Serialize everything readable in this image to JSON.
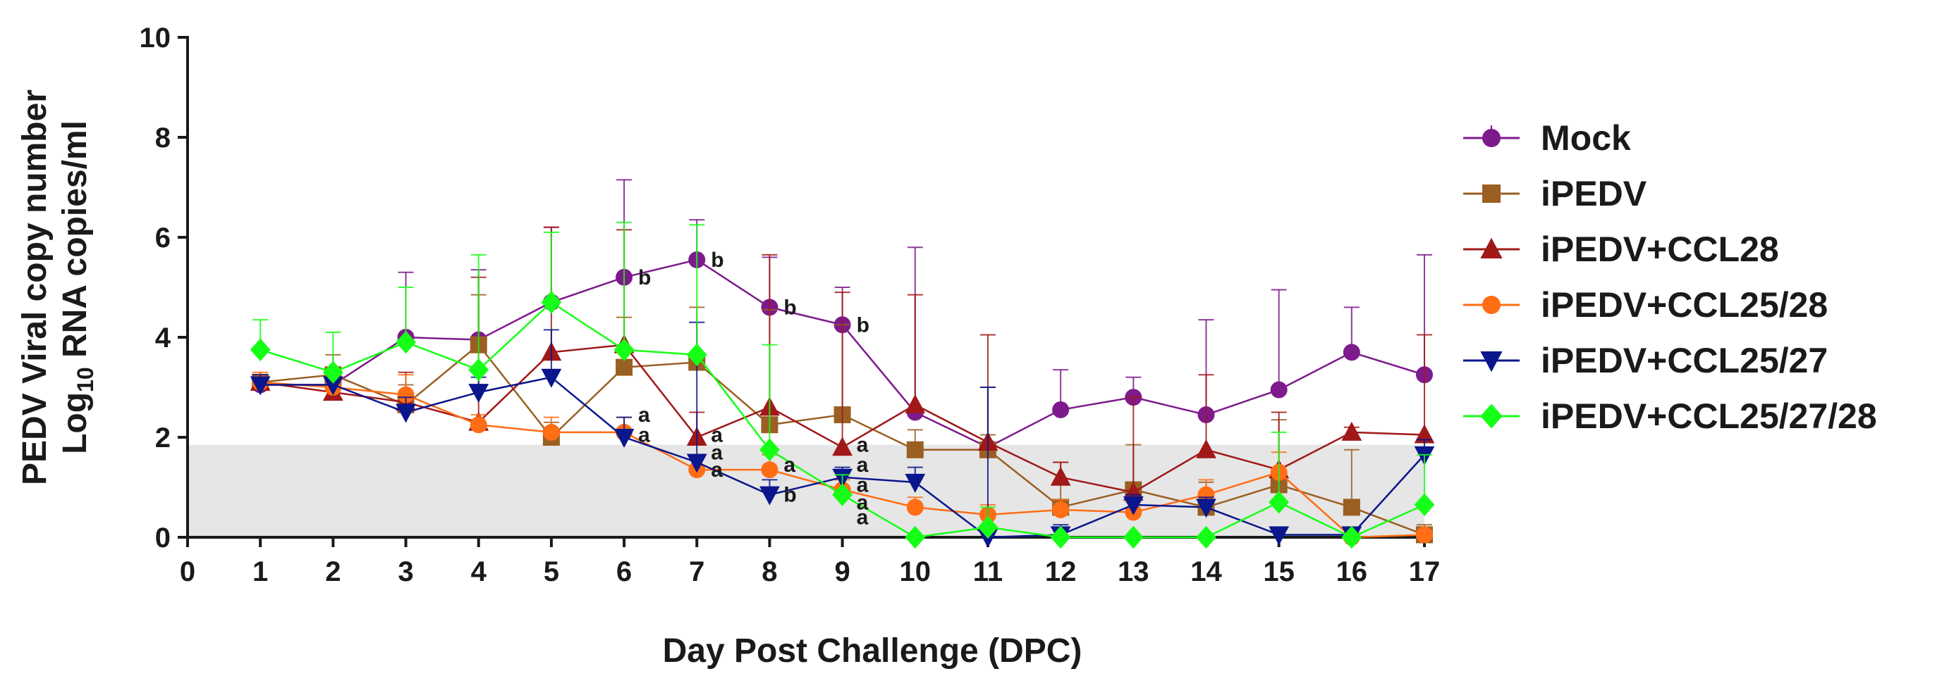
{
  "chart_data": {
    "type": "line",
    "title": "",
    "xlabel": "Day Post Challenge (DPC)",
    "ylabel_line1": "PEDV Viral copy number",
    "ylabel_line2_prefix": "Log",
    "ylabel_line2_subscript": "10",
    "ylabel_line2_suffix": " RNA copies/ml",
    "xlim": [
      0,
      17
    ],
    "ylim": [
      0,
      10
    ],
    "x_ticks": [
      "0",
      "1",
      "2",
      "3",
      "4",
      "5",
      "6",
      "7",
      "8",
      "9",
      "10",
      "11",
      "12",
      "13",
      "14",
      "15",
      "16",
      "17"
    ],
    "y_ticks": [
      "0",
      "2",
      "4",
      "6",
      "8",
      "10"
    ],
    "detection_limit": 1.85,
    "x": [
      1,
      2,
      3,
      4,
      5,
      6,
      7,
      8,
      9,
      10,
      11,
      12,
      13,
      14,
      15,
      16,
      17
    ],
    "legend_position": "right",
    "series": [
      {
        "name": "Mock",
        "color": "#7d1a8c",
        "marker": "circle",
        "values": [
          3.05,
          3.05,
          4.0,
          3.95,
          4.7,
          5.2,
          5.55,
          4.6,
          4.25,
          2.5,
          1.8,
          2.55,
          2.8,
          2.45,
          2.95,
          3.7,
          3.25
        ],
        "errors": [
          0.1,
          0.3,
          1.3,
          1.4,
          1.5,
          1.95,
          0.8,
          1.0,
          0.75,
          3.3,
          1.2,
          0.8,
          0.4,
          1.9,
          2.0,
          0.9,
          2.4
        ]
      },
      {
        "name": "iPEDV",
        "color": "#9a5f22",
        "marker": "square",
        "values": [
          3.1,
          3.25,
          2.65,
          3.85,
          2.0,
          3.4,
          3.5,
          2.25,
          2.45,
          1.75,
          1.75,
          0.6,
          0.95,
          0.6,
          1.05,
          0.6,
          0.05
        ],
        "errors": [
          0.15,
          0.4,
          0.4,
          1.0,
          0.3,
          1.0,
          1.1,
          2.3,
          1.8,
          0.4,
          0.3,
          0.9,
          0.9,
          0.5,
          1.3,
          1.15,
          0.2
        ]
      },
      {
        "name": "iPEDV+CCL28",
        "color": "#a01818",
        "marker": "triangle-up",
        "values": [
          3.1,
          2.9,
          2.7,
          2.3,
          3.7,
          3.85,
          2.0,
          2.6,
          1.8,
          2.65,
          1.9,
          1.2,
          0.9,
          1.75,
          1.35,
          2.1,
          2.05
        ],
        "errors": [
          0.1,
          0.3,
          0.6,
          2.9,
          2.5,
          2.3,
          0.5,
          3.05,
          3.1,
          2.2,
          2.15,
          0.3,
          1.9,
          1.5,
          1.15,
          0.1,
          2.0
        ]
      },
      {
        "name": "iPEDV+CCL25/28",
        "color": "#ff6d14",
        "marker": "circle",
        "values": [
          3.1,
          3.0,
          2.85,
          2.25,
          2.1,
          2.1,
          1.35,
          1.35,
          0.95,
          0.6,
          0.45,
          0.55,
          0.5,
          0.85,
          1.3,
          0.0,
          0.05
        ],
        "errors": [
          0.2,
          0.3,
          0.4,
          0.2,
          0.3,
          0.3,
          0.3,
          0.3,
          0.2,
          0.2,
          0.2,
          0.2,
          0.2,
          0.3,
          0.4,
          0.1,
          0.1
        ]
      },
      {
        "name": "iPEDV+CCL25/27",
        "color": "#0a168c",
        "marker": "triangle-down",
        "values": [
          3.05,
          3.05,
          2.5,
          2.9,
          3.2,
          2.0,
          1.5,
          0.85,
          1.2,
          1.1,
          0.0,
          0.05,
          0.65,
          0.6,
          0.05,
          0.05,
          1.65
        ],
        "errors": [
          0.2,
          0.3,
          0.3,
          0.3,
          0.95,
          0.4,
          2.8,
          0.3,
          0.2,
          0.3,
          3.0,
          0.2,
          0.2,
          0.2,
          0.1,
          0.1,
          0.3
        ]
      },
      {
        "name": "iPEDV+CCL25/27/28",
        "color": "#16ff16",
        "marker": "diamond",
        "values": [
          3.75,
          3.3,
          3.9,
          3.35,
          4.7,
          3.75,
          3.65,
          1.75,
          0.85,
          0.0,
          0.2,
          0.0,
          0.0,
          0.0,
          0.7,
          0.0,
          0.65
        ],
        "errors": [
          0.6,
          0.8,
          1.1,
          2.3,
          1.4,
          2.55,
          2.6,
          2.1,
          0.4,
          0.0,
          0.4,
          0.0,
          0.0,
          0.0,
          1.4,
          0.0,
          1.0
        ]
      }
    ],
    "annotations": [
      {
        "x": 6,
        "y": 5.2,
        "text": "b"
      },
      {
        "x": 7,
        "y": 5.55,
        "text": "b"
      },
      {
        "x": 8,
        "y": 4.6,
        "text": "b"
      },
      {
        "x": 9,
        "y": 4.25,
        "text": "b"
      },
      {
        "x": 6,
        "y": 2.45,
        "text": "a"
      },
      {
        "x": 6,
        "y": 2.05,
        "text": "a"
      },
      {
        "x": 7,
        "y": 2.05,
        "text": "a"
      },
      {
        "x": 7,
        "y": 1.7,
        "text": "a"
      },
      {
        "x": 7,
        "y": 1.35,
        "text": "a"
      },
      {
        "x": 8,
        "y": 1.45,
        "text": "a"
      },
      {
        "x": 8,
        "y": 0.85,
        "text": "b"
      },
      {
        "x": 9,
        "y": 1.85,
        "text": "a"
      },
      {
        "x": 9,
        "y": 1.45,
        "text": "a"
      },
      {
        "x": 9,
        "y": 1.05,
        "text": "a"
      },
      {
        "x": 9,
        "y": 0.7,
        "text": "a"
      },
      {
        "x": 9,
        "y": 0.4,
        "text": "a"
      }
    ]
  }
}
